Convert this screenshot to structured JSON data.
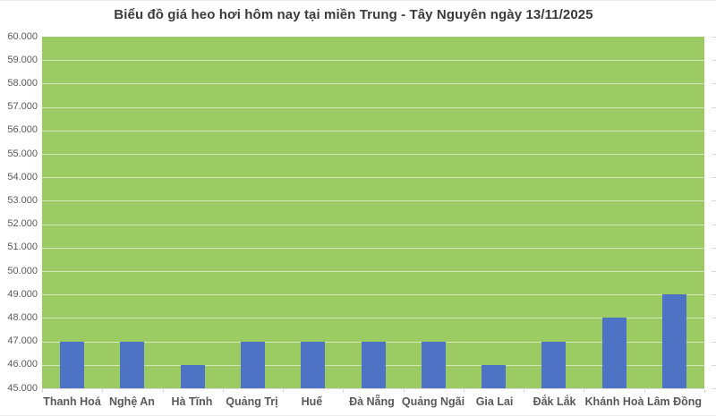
{
  "chart_data": {
    "type": "bar",
    "title": "Biểu đồ giá heo hơi hôm nay tại miền Trung - Tây Nguyên ngày 13/11/2025",
    "categories": [
      "Thanh Hoá",
      "Nghệ An",
      "Hà Tĩnh",
      "Quảng Trị",
      "Huế",
      "Đà Nẵng",
      "Quảng Ngãi",
      "Gia Lai",
      "Đắk Lắk",
      "Khánh Hoà",
      "Lâm Đồng"
    ],
    "values": [
      47000,
      47000,
      46000,
      47000,
      47000,
      47000,
      47000,
      46000,
      47000,
      48000,
      49000
    ],
    "xlabel": "",
    "ylabel": "",
    "ylim": [
      45000,
      60000
    ],
    "ytick_step": 1000,
    "ytick_labels": [
      "45.000",
      "46.000",
      "47.000",
      "48.000",
      "49.000",
      "50.000",
      "51.000",
      "52.000",
      "53.000",
      "54.000",
      "55.000",
      "56.000",
      "57.000",
      "58.000",
      "59.000",
      "60.000"
    ],
    "grid": true,
    "legend": "none",
    "colors": {
      "bar": "#4E73C4",
      "plot_background": "#9CCB63",
      "gridline": "rgba(255,255,255,0.55)",
      "axis_line": "#D9D9D9",
      "title_text": "#3B3B3B",
      "axis_text": "#595959"
    }
  }
}
